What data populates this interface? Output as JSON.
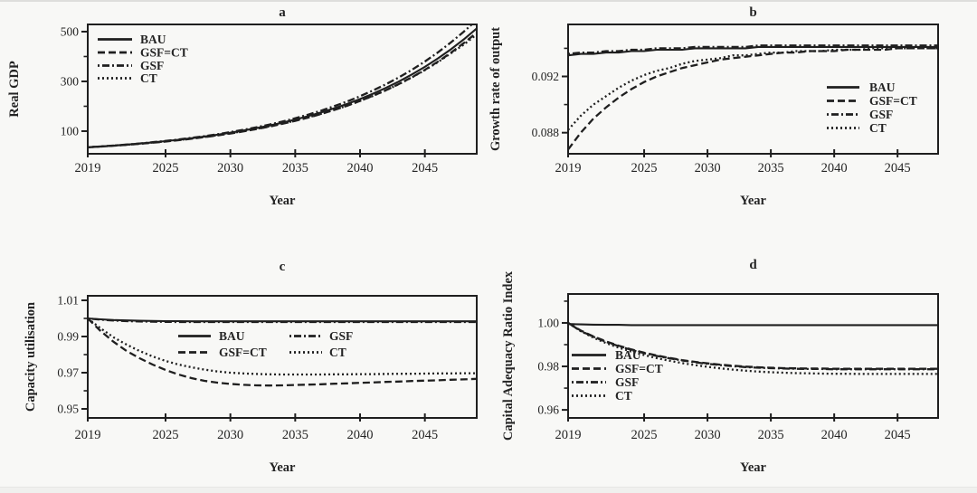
{
  "figure": {
    "background": "#f8f8f6",
    "line_color": "#1f1f1f",
    "text_color": "#242424"
  },
  "chart_data": [
    {
      "panel": "a",
      "type": "line",
      "title": "a",
      "xlabel": "Year",
      "ylabel": "Real GDP",
      "xlim": [
        2019,
        2049
      ],
      "ylim": [
        9,
        529
      ],
      "grid": false,
      "legend_position": "top-left",
      "legend_columns": 1,
      "xticks": [
        {
          "v": 2019,
          "label": "2019"
        },
        {
          "v": 2025,
          "label": "2025"
        },
        {
          "v": 2030,
          "label": "2030"
        },
        {
          "v": 2035,
          "label": "2035"
        },
        {
          "v": 2040,
          "label": "2040"
        },
        {
          "v": 2045,
          "label": "2045"
        }
      ],
      "yticks": [
        {
          "v": 100,
          "label": "100"
        },
        {
          "v": 300,
          "label": "300"
        },
        {
          "v": 500,
          "label": "500"
        }
      ],
      "yticks_minor": [
        200,
        400
      ],
      "x": [
        2019,
        2020,
        2021,
        2022,
        2023,
        2024,
        2025,
        2026,
        2027,
        2028,
        2029,
        2030,
        2031,
        2032,
        2033,
        2034,
        2035,
        2036,
        2037,
        2038,
        2039,
        2040,
        2041,
        2042,
        2043,
        2044,
        2045,
        2046,
        2047,
        2048,
        2049
      ],
      "series": [
        {
          "name": "BAU",
          "style": "solid",
          "values": [
            35,
            38.3,
            41.9,
            45.8,
            50.1,
            54.8,
            59.9,
            65.5,
            71.6,
            78.3,
            85.6,
            93.6,
            102.4,
            112,
            122.5,
            133.9,
            146.5,
            160.2,
            175.2,
            191.6,
            209.5,
            229.1,
            250.6,
            274.1,
            299.7,
            327.8,
            358.5,
            392.1,
            428.8,
            469,
            513
          ]
        },
        {
          "name": "GSF=CT",
          "style": "dashed",
          "values": [
            35,
            38,
            41.4,
            45,
            49,
            53.4,
            58.2,
            63.6,
            69.4,
            75.8,
            82.8,
            90.5,
            98.9,
            108.1,
            118.2,
            129.2,
            141.3,
            154.5,
            169,
            184.9,
            202.2,
            221.2,
            242,
            264.7,
            289.6,
            316.8,
            346.6,
            379.2,
            414.9,
            454,
            496
          ]
        },
        {
          "name": "GSF",
          "style": "dashdot",
          "values": [
            35,
            38.4,
            42.1,
            46.2,
            50.6,
            55.5,
            60.8,
            66.6,
            73,
            80,
            87.7,
            96.1,
            105.3,
            115.4,
            126.5,
            138.6,
            152,
            166.6,
            182.6,
            200.1,
            219.3,
            240.3,
            263.4,
            288.6,
            316.3,
            346.6,
            379.9,
            416.3,
            456.2,
            500,
            547
          ]
        },
        {
          "name": "CT",
          "style": "dotted",
          "values": [
            35,
            38.1,
            41.6,
            45.4,
            49.5,
            54,
            58.9,
            64.3,
            70.2,
            76.6,
            83.7,
            91.4,
            99.8,
            109,
            119.1,
            130.1,
            142.1,
            155.2,
            169.6,
            185.3,
            202.5,
            221.3,
            241.9,
            264.4,
            289,
            315.9,
            345.3,
            377.4,
            412.5,
            448,
            489
          ]
        }
      ]
    },
    {
      "panel": "b",
      "type": "line",
      "title": "b",
      "xlabel": "Year",
      "ylabel": "Growth rate of output",
      "xlim": [
        2019,
        2048.2
      ],
      "ylim": [
        0.0865,
        0.0957
      ],
      "grid": false,
      "legend_position": "middle-right",
      "legend_columns": 1,
      "xticks": [
        {
          "v": 2019,
          "label": "2019"
        },
        {
          "v": 2025,
          "label": "2025"
        },
        {
          "v": 2030,
          "label": "2030"
        },
        {
          "v": 2035,
          "label": "2035"
        },
        {
          "v": 2040,
          "label": "2040"
        },
        {
          "v": 2045,
          "label": "2045"
        }
      ],
      "yticks": [
        {
          "v": 0.088,
          "label": "0.088"
        },
        {
          "v": 0.092,
          "label": "0.092"
        }
      ],
      "yticks_minor": [
        0.09,
        0.094
      ],
      "x": [
        2019,
        2020,
        2021,
        2022,
        2023,
        2024,
        2025,
        2026,
        2027,
        2028,
        2029,
        2030,
        2031,
        2032,
        2033,
        2034,
        2035,
        2036,
        2037,
        2038,
        2039,
        2040,
        2041,
        2042,
        2043,
        2044,
        2045,
        2046,
        2047,
        2048,
        2049
      ],
      "series": [
        {
          "name": "BAU",
          "style": "solid",
          "values": [
            0.0935,
            0.0936,
            0.0936,
            0.0937,
            0.0937,
            0.0938,
            0.0938,
            0.0939,
            0.0939,
            0.0939,
            0.094,
            0.094,
            0.094,
            0.094,
            0.094,
            0.0941,
            0.0941,
            0.0941,
            0.0941,
            0.0941,
            0.0941,
            0.0941,
            0.0941,
            0.0941,
            0.0941,
            0.0941,
            0.0941,
            0.0941,
            0.0941,
            0.0941,
            0.0941
          ]
        },
        {
          "name": "GSF=CT",
          "style": "dashed",
          "values": [
            0.0868,
            0.088,
            0.089,
            0.0898,
            0.0905,
            0.0911,
            0.0916,
            0.092,
            0.0923,
            0.0926,
            0.0928,
            0.093,
            0.0932,
            0.0933,
            0.0934,
            0.0935,
            0.0936,
            0.0937,
            0.0937,
            0.0938,
            0.0938,
            0.0938,
            0.0939,
            0.0939,
            0.0939,
            0.0939,
            0.094,
            0.094,
            0.094,
            0.094,
            0.094
          ]
        },
        {
          "name": "GSF",
          "style": "dashdot",
          "values": [
            0.0936,
            0.0937,
            0.0937,
            0.0938,
            0.0938,
            0.0939,
            0.0939,
            0.094,
            0.094,
            0.094,
            0.0941,
            0.0941,
            0.0941,
            0.0941,
            0.0941,
            0.0942,
            0.0942,
            0.0942,
            0.0942,
            0.0942,
            0.0942,
            0.0942,
            0.0942,
            0.0942,
            0.0942,
            0.0942,
            0.0942,
            0.0942,
            0.0942,
            0.0942,
            0.0942
          ]
        },
        {
          "name": "CT",
          "style": "dotted",
          "values": [
            0.0882,
            0.0892,
            0.09,
            0.0906,
            0.0912,
            0.0917,
            0.0921,
            0.0924,
            0.0926,
            0.0929,
            0.0931,
            0.0932,
            0.0933,
            0.0935,
            0.0935,
            0.0936,
            0.0937,
            0.0937,
            0.0938,
            0.0938,
            0.0938,
            0.0939,
            0.0939,
            0.0939,
            0.094,
            0.094,
            0.094,
            0.094,
            0.094,
            0.094,
            0.094
          ]
        }
      ]
    },
    {
      "panel": "c",
      "type": "line",
      "title": "c",
      "xlabel": "Year",
      "ylabel": "Capacity utilisation",
      "xlim": [
        2019,
        2049
      ],
      "ylim": [
        0.945,
        1.0125
      ],
      "grid": false,
      "legend_position": "center",
      "legend_columns": 2,
      "xticks": [
        {
          "v": 2019,
          "label": "2019"
        },
        {
          "v": 2025,
          "label": "2025"
        },
        {
          "v": 2030,
          "label": "2030"
        },
        {
          "v": 2035,
          "label": "2035"
        },
        {
          "v": 2040,
          "label": "2040"
        },
        {
          "v": 2045,
          "label": "2045"
        }
      ],
      "yticks": [
        {
          "v": 0.95,
          "label": "0.95"
        },
        {
          "v": 0.97,
          "label": "0.97"
        },
        {
          "v": 0.99,
          "label": "0.99"
        },
        {
          "v": 1.01,
          "label": "1.01"
        }
      ],
      "yticks_minor": [
        0.96,
        0.98,
        1.0
      ],
      "x": [
        2019,
        2020,
        2021,
        2022,
        2023,
        2024,
        2025,
        2026,
        2027,
        2028,
        2029,
        2030,
        2031,
        2032,
        2033,
        2034,
        2035,
        2036,
        2037,
        2038,
        2039,
        2040,
        2041,
        2042,
        2043,
        2044,
        2045,
        2046,
        2047,
        2048,
        2049
      ],
      "series": [
        {
          "name": "BAU",
          "style": "solid",
          "values": [
            1,
            0.9995,
            0.9991,
            0.9989,
            0.9987,
            0.9986,
            0.9985,
            0.9985,
            0.9984,
            0.9984,
            0.9984,
            0.9984,
            0.9984,
            0.9984,
            0.9984,
            0.9984,
            0.9984,
            0.9984,
            0.9984,
            0.9984,
            0.9984,
            0.9984,
            0.9984,
            0.9984,
            0.9984,
            0.9984,
            0.9984,
            0.9984,
            0.9984,
            0.9984,
            0.9984
          ]
        },
        {
          "name": "GSF=CT",
          "style": "dashed",
          "values": [
            1,
            0.993,
            0.987,
            0.982,
            0.978,
            0.9745,
            0.9715,
            0.969,
            0.967,
            0.9655,
            0.9645,
            0.9638,
            0.9633,
            0.963,
            0.9629,
            0.963,
            0.9632,
            0.9634,
            0.9636,
            0.9639,
            0.9641,
            0.9644,
            0.9646,
            0.9649,
            0.9651,
            0.9654,
            0.9656,
            0.9658,
            0.9661,
            0.9663,
            0.9666
          ]
        },
        {
          "name": "GSF",
          "style": "dashdot",
          "values": [
            1,
            0.9993,
            0.9988,
            0.9985,
            0.9983,
            0.9982,
            0.9981,
            0.998,
            0.998,
            0.998,
            0.998,
            0.998,
            0.998,
            0.998,
            0.998,
            0.998,
            0.998,
            0.998,
            0.998,
            0.998,
            0.998,
            0.998,
            0.998,
            0.998,
            0.998,
            0.998,
            0.998,
            0.998,
            0.998,
            0.998,
            0.998
          ]
        },
        {
          "name": "CT",
          "style": "dotted",
          "values": [
            1,
            0.9945,
            0.9895,
            0.9855,
            0.982,
            0.979,
            0.9765,
            0.9745,
            0.973,
            0.9717,
            0.9707,
            0.97,
            0.9696,
            0.9693,
            0.9691,
            0.969,
            0.969,
            0.969,
            0.969,
            0.9691,
            0.9691,
            0.9692,
            0.9692,
            0.9693,
            0.9694,
            0.9694,
            0.9695,
            0.9696,
            0.9696,
            0.9697,
            0.9697
          ]
        }
      ]
    },
    {
      "panel": "d",
      "type": "line",
      "title": "d",
      "xlabel": "Year",
      "ylabel": "Capital Adequacy Ratio Index",
      "xlim": [
        2019,
        2048.2
      ],
      "ylim": [
        0.9563,
        1.0133
      ],
      "grid": false,
      "legend_position": "bottom-left",
      "legend_columns": 1,
      "xticks": [
        {
          "v": 2019,
          "label": "2019"
        },
        {
          "v": 2025,
          "label": "2025"
        },
        {
          "v": 2030,
          "label": "2030"
        },
        {
          "v": 2035,
          "label": "2035"
        },
        {
          "v": 2040,
          "label": "2040"
        },
        {
          "v": 2045,
          "label": "2045"
        }
      ],
      "yticks": [
        {
          "v": 0.96,
          "label": "0.96"
        },
        {
          "v": 0.98,
          "label": "0.98"
        },
        {
          "v": 1.0,
          "label": "1.00"
        }
      ],
      "yticks_minor": [
        0.97,
        0.99,
        1.01
      ],
      "x": [
        2019,
        2020,
        2021,
        2022,
        2023,
        2024,
        2025,
        2026,
        2027,
        2028,
        2029,
        2030,
        2031,
        2032,
        2033,
        2034,
        2035,
        2036,
        2037,
        2038,
        2039,
        2040,
        2041,
        2042,
        2043,
        2044,
        2045,
        2046,
        2047,
        2048,
        2049
      ],
      "series": [
        {
          "name": "BAU",
          "style": "solid",
          "values": [
            0.9995,
            0.9993,
            0.9992,
            0.9991,
            0.9991,
            0.999,
            0.999,
            0.999,
            0.999,
            0.999,
            0.999,
            0.999,
            0.999,
            0.999,
            0.999,
            0.999,
            0.999,
            0.999,
            0.999,
            0.999,
            0.999,
            0.999,
            0.999,
            0.999,
            0.999,
            0.999,
            0.999,
            0.999,
            0.999,
            0.999,
            0.999
          ]
        },
        {
          "name": "GSF=CT",
          "style": "dashed",
          "values": [
            1,
            0.9965,
            0.9938,
            0.9915,
            0.9895,
            0.9878,
            0.9863,
            0.985,
            0.9839,
            0.9829,
            0.9821,
            0.9814,
            0.9808,
            0.9803,
            0.9799,
            0.9796,
            0.9794,
            0.9792,
            0.9791,
            0.979,
            0.979,
            0.9789,
            0.9789,
            0.9789,
            0.9789,
            0.9789,
            0.9789,
            0.9789,
            0.9789,
            0.9789,
            0.9789
          ]
        },
        {
          "name": "GSF",
          "style": "dashdot",
          "values": [
            1,
            0.9963,
            0.9936,
            0.9913,
            0.9893,
            0.9876,
            0.9861,
            0.9848,
            0.9837,
            0.9827,
            0.9819,
            0.9812,
            0.9806,
            0.9801,
            0.9797,
            0.9794,
            0.9792,
            0.979,
            0.9789,
            0.9788,
            0.9788,
            0.9787,
            0.9787,
            0.9787,
            0.9787,
            0.9787,
            0.9787,
            0.9787,
            0.9787,
            0.9787,
            0.9787
          ]
        },
        {
          "name": "CT",
          "style": "dotted",
          "values": [
            1,
            0.9962,
            0.9932,
            0.9907,
            0.9886,
            0.9868,
            0.9852,
            0.9838,
            0.9826,
            0.9815,
            0.9806,
            0.9798,
            0.9791,
            0.9785,
            0.978,
            0.9776,
            0.9773,
            0.9771,
            0.9769,
            0.9768,
            0.9767,
            0.9766,
            0.9766,
            0.9765,
            0.9765,
            0.9765,
            0.9765,
            0.9765,
            0.9765,
            0.9765,
            0.9765
          ]
        }
      ]
    }
  ]
}
